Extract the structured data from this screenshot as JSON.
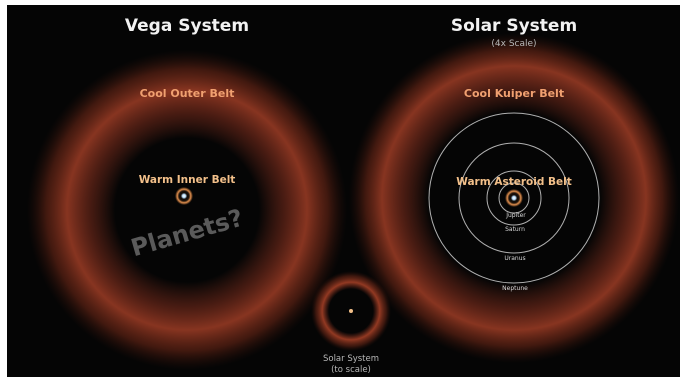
{
  "vega": {
    "title": "Vega System",
    "outer_belt_label": "Cool Outer Belt",
    "inner_belt_label": "Warm Inner Belt",
    "planets_label": "Planets?"
  },
  "solar": {
    "title": "Solar System",
    "scale_note": "(4x Scale)",
    "outer_belt_label": "Cool Kuiper Belt",
    "inner_belt_label": "Warm Asteroid Belt",
    "orbits": {
      "jupiter": "Jupiter",
      "saturn": "Saturn",
      "uranus": "Uranus",
      "neptune": "Neptune"
    }
  },
  "solar_to_scale": {
    "line1": "Solar System",
    "line2": "(to scale)"
  },
  "colors": {
    "background": "#050505",
    "dust_ring": "#8a3320",
    "warm_ring": "#d9823e",
    "star_core": "#bfe3ff",
    "orbit_line": "#cfcfcf"
  }
}
